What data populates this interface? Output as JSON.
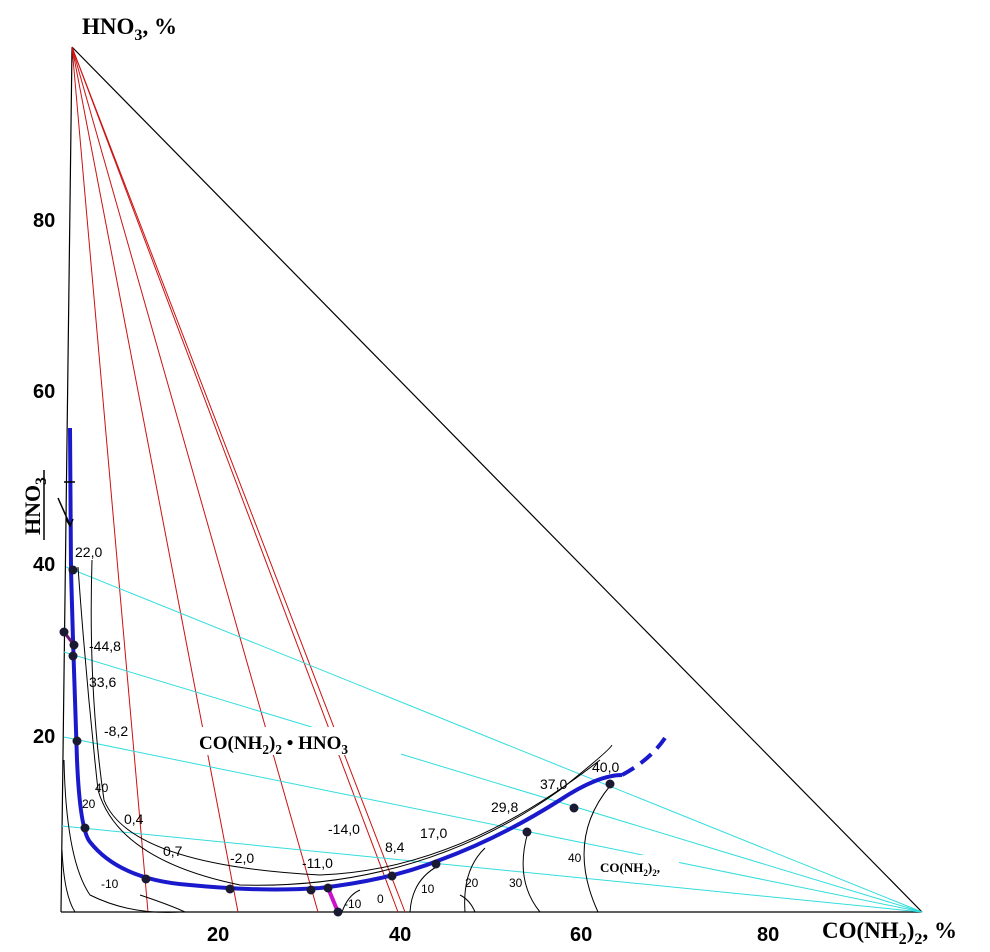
{
  "diagram": {
    "top_vertex_label": "HNO",
    "top_vertex_sub": "3",
    "top_vertex_suffix": ", %",
    "right_vertex_label": "CO(NH",
    "right_vertex_sub": "2",
    "right_vertex_mid": ")",
    "right_vertex_sub2": "2",
    "right_vertex_suffix": ", %",
    "left_phase_label": "HNO",
    "left_phase_sub": "3",
    "compound_label": "CO(NH",
    "compound_sub1": "2",
    "compound_mid": ")",
    "compound_sub2": "2",
    "compound_suffix": " • HNO",
    "compound_sub3": "3",
    "urea_field_label": "CO(NH",
    "urea_field_sub1": "2",
    "urea_field_mid": ")",
    "urea_field_sub2": "2",
    "urea_field_suffix": ",",
    "y_ticks": [
      "80",
      "60",
      "40",
      "20"
    ],
    "x_ticks": [
      "20",
      "40",
      "60",
      "80"
    ],
    "point_labels": [
      "22,0",
      "-44,8",
      "33,6",
      "-8,2",
      "0,4",
      "0,7",
      "-2,0",
      "-11,0",
      "-14,0",
      "8,4",
      "17,0",
      "29,8",
      "37,0",
      "40,0"
    ],
    "isotherm_labels": [
      "40",
      "20",
      "-10",
      "-10",
      "0",
      "10",
      "20",
      "30",
      "40"
    ],
    "colors": {
      "frame": "#000000",
      "red_ray": "#cc1111",
      "cyan_ray": "#33dddd",
      "liquidus": "#1a1acc",
      "short_branch": "#cc11cc",
      "point": "#1a1a33"
    }
  }
}
